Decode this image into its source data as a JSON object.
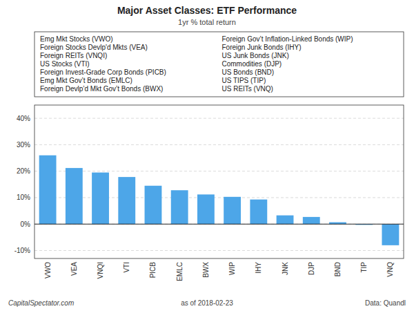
{
  "chart_data": {
    "type": "bar",
    "title": "Major Asset Classes: ETF Performance",
    "subtitle": "1yr % total return",
    "categories": [
      "VWO",
      "VEA",
      "VNQI",
      "VTI",
      "PICB",
      "EMLC",
      "BWX",
      "WIP",
      "IHY",
      "JNK",
      "DJP",
      "BND",
      "TIP",
      "VNQ"
    ],
    "values": [
      26.0,
      21.2,
      19.5,
      17.8,
      14.5,
      12.8,
      11.2,
      10.3,
      9.3,
      3.3,
      2.7,
      0.7,
      -0.3,
      -8.0
    ],
    "color": "#4da6e8",
    "ylim": [
      -13,
      45
    ],
    "yticks": [
      {
        "value": -10,
        "label": "-10%"
      },
      {
        "value": 0,
        "label": "0%"
      },
      {
        "value": 10,
        "label": "10%"
      },
      {
        "value": 20,
        "label": "20%"
      },
      {
        "value": 30,
        "label": "30%"
      },
      {
        "value": 40,
        "label": "40%"
      }
    ],
    "grid": true,
    "annotations": [
      "Emg Mkt Stocks (VWO)",
      "Foreign Stocks Devlp'd Mkts (VEA)",
      "Foreign REITs (VNQI)",
      "US Stocks (VTI)",
      "Foreign Invest-Grade Corp Bonds (PICB)",
      "Emg Mkt Gov’t Bonds (EMLC)",
      "Foreign Devlp’d Mkt Gov’t Bonds (BWX)",
      "Foreign Gov’t Inflation-Linked Bonds (WIP)",
      "Foreign Junk Bonds (IHY)",
      "US Junk Bonds (JNK)",
      "Commodities (DJP)",
      "US Bonds (BND)",
      "US TIPS (TIP)",
      "US REITs (VNQ)"
    ],
    "footer": [
      "CapitalSpectator.com",
      "as of  2018-02-23",
      "Data: Quandl"
    ]
  }
}
